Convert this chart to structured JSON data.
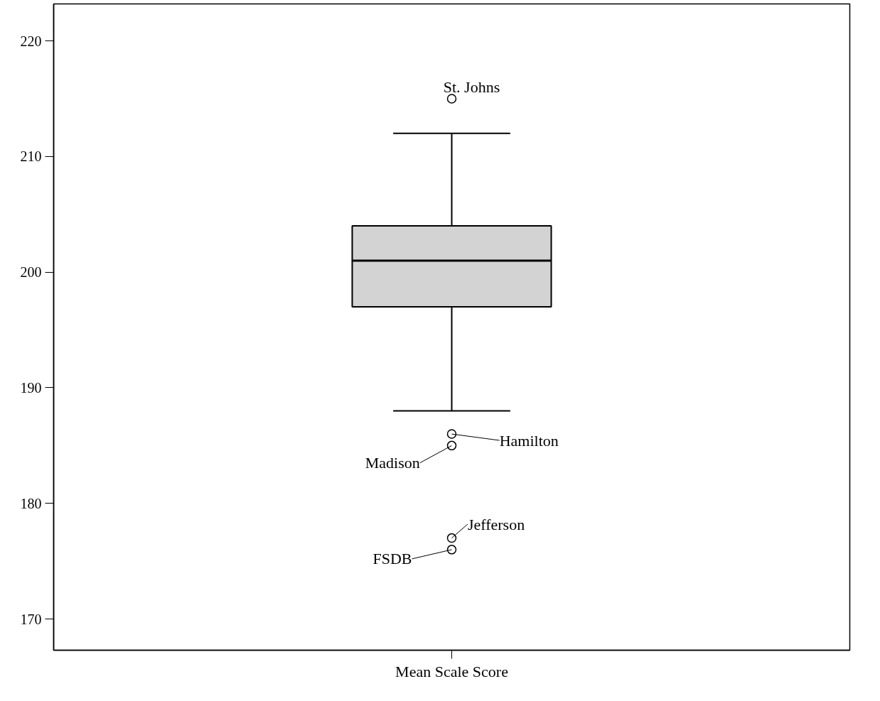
{
  "chart_data": {
    "type": "box",
    "categories": [
      "Mean Scale Score"
    ],
    "boxes": [
      {
        "low": 188,
        "q1": 197,
        "median": 201,
        "q3": 204,
        "high": 212
      }
    ],
    "series": [
      {
        "type": "scatter",
        "marker": "circle",
        "x": [
          "Mean Scale Score",
          "Mean Scale Score",
          "Mean Scale Score",
          "Mean Scale Score",
          "Mean Scale Score"
        ],
        "values": [
          215,
          186,
          185,
          177,
          176
        ]
      }
    ],
    "colors": [
      "#d3d3d3"
    ],
    "ylim": [
      167.3,
      223.2
    ],
    "yticks": [
      170,
      180,
      190,
      200,
      210,
      220
    ],
    "grid": false,
    "annotations": [
      {
        "text": "St. Johns",
        "x": "Mean Scale Score",
        "y": 215
      },
      {
        "text": "Hamilton",
        "x": "Mean Scale Score",
        "y": 186
      },
      {
        "text": "Madison",
        "x": "Mean Scale Score",
        "y": 185
      },
      {
        "text": "Jefferson",
        "x": "Mean Scale Score",
        "y": 177
      },
      {
        "text": "FSDB",
        "x": "Mean Scale Score",
        "y": 176
      }
    ]
  }
}
